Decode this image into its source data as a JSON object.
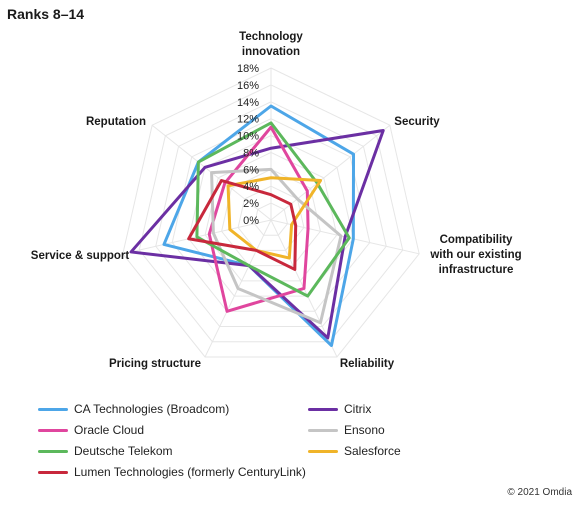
{
  "title": "Ranks 8–14",
  "footer": "© 2021 Omdia",
  "chart_data": {
    "type": "radar",
    "axes": [
      "Technology innovation",
      "Security",
      "Compatibility with our existing infrastructure",
      "Reliability",
      "Pricing structure",
      "Service & support",
      "Reputation"
    ],
    "axis_label_lines": [
      [
        "Technology",
        "innovation"
      ],
      [
        "Security"
      ],
      [
        "Compatibility",
        "with our existing",
        "infrastructure"
      ],
      [
        "Reliability"
      ],
      [
        "Pricing structure"
      ],
      [
        "Service & support"
      ],
      [
        "Reputation"
      ]
    ],
    "ticks": [
      "0%",
      "2%",
      "4%",
      "6%",
      "8%",
      "10%",
      "12%",
      "14%",
      "16%",
      "18%"
    ],
    "range": [
      0,
      18
    ],
    "series": [
      {
        "name": "CA Technologies (Broadcom)",
        "color": "#4da6e8",
        "values": [
          13.5,
          12.5,
          10,
          16.5,
          6,
          13,
          11
        ]
      },
      {
        "name": "Citrix",
        "color": "#6b2fa3",
        "values": [
          8.5,
          17,
          9,
          15.5,
          6,
          17,
          10
        ]
      },
      {
        "name": "Oracle Cloud",
        "color": "#e0469e",
        "values": [
          11,
          5.5,
          4.5,
          9,
          12,
          7.5,
          7
        ]
      },
      {
        "name": "Ensono",
        "color": "#c5c5c5",
        "values": [
          6,
          4,
          8.5,
          13.5,
          9,
          7,
          9
        ]
      },
      {
        "name": "Deutsche Telekom",
        "color": "#5cb85c",
        "values": [
          11.5,
          7,
          9.5,
          10,
          6,
          9,
          11
        ]
      },
      {
        "name": "Salesforce",
        "color": "#f0b429",
        "values": [
          5,
          7.5,
          2.5,
          5,
          4,
          5,
          6.5
        ]
      },
      {
        "name": "Lumen Technologies (formerly CenturyLink)",
        "color": "#c8283c",
        "values": [
          3,
          3,
          3,
          6.5,
          4,
          10,
          7.5
        ]
      }
    ],
    "legend_placement": "bottom",
    "grid": true
  }
}
